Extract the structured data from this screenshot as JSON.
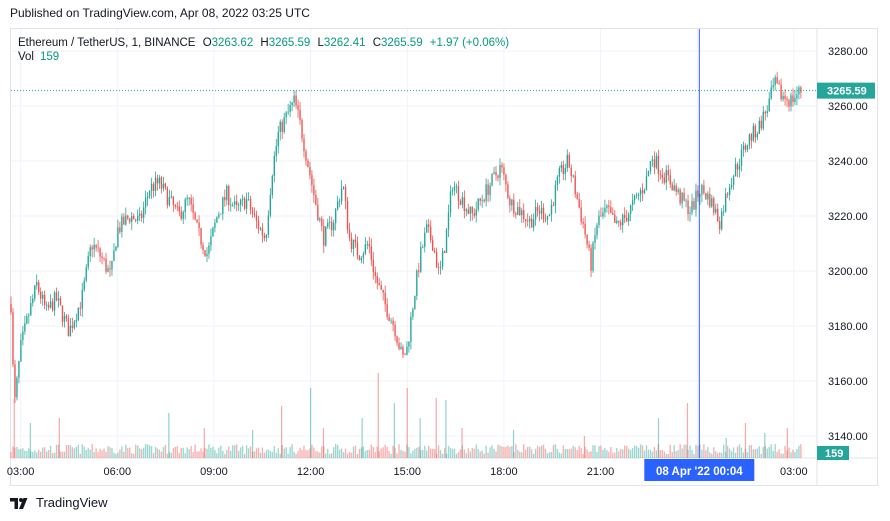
{
  "header": {
    "published": "Published on TradingView.com, Apr 08, 2022 03:25 UTC"
  },
  "legend": {
    "symbol": "Ethereum / TetherUS, 1, BINANCE",
    "open_label": "O",
    "open": "3263.62",
    "high_label": "H",
    "high": "3265.59",
    "low_label": "L",
    "low": "3262.41",
    "close_label": "C",
    "close": "3265.59",
    "change": "+1.97 (+0.06%)",
    "vol_label": "Vol",
    "vol": "159"
  },
  "badges": {
    "price": "3265.59",
    "volume": "159",
    "crosshair_time": "08 Apr '22   00:04"
  },
  "footer": {
    "brand": "TradingView"
  },
  "colors": {
    "up": "#26a69a",
    "down": "#ef5350",
    "crosshair": "#2962ff",
    "badge_price": "#26a69a"
  },
  "chart_data": {
    "type": "candlestick",
    "interval": "1 minute",
    "ylim": [
      3132,
      3288
    ],
    "y_ticks": [
      3140,
      3160,
      3180,
      3200,
      3220,
      3240,
      3260,
      3280
    ],
    "y_tick_labels": [
      "3140.00",
      "3160.00",
      "3180.00",
      "3200.00",
      "3220.00",
      "3240.00",
      "3260.00",
      "3280.00"
    ],
    "x_range_hours": [
      -21.3,
      3.72
    ],
    "x_ticks": [
      {
        "hours": -21,
        "label": "03:00"
      },
      {
        "hours": -18,
        "label": "06:00"
      },
      {
        "hours": -15,
        "label": "09:00"
      },
      {
        "hours": -12,
        "label": "12:00"
      },
      {
        "hours": -9,
        "label": "15:00"
      },
      {
        "hours": -6,
        "label": "18:00"
      },
      {
        "hours": -3,
        "label": "21:00"
      },
      {
        "hours": 0,
        "label": "00:00"
      },
      {
        "hours": 3,
        "label": "03:00"
      }
    ],
    "crosshair_hours": 0.067,
    "last_price": 3265.59,
    "price_path": [
      [
        -21.3,
        3188
      ],
      [
        -21.2,
        3150
      ],
      [
        -21.0,
        3172
      ],
      [
        -20.8,
        3182
      ],
      [
        -20.5,
        3195
      ],
      [
        -20.2,
        3185
      ],
      [
        -19.9,
        3190
      ],
      [
        -19.5,
        3178
      ],
      [
        -19.1,
        3190
      ],
      [
        -18.8,
        3210
      ],
      [
        -18.5,
        3205
      ],
      [
        -18.2,
        3198
      ],
      [
        -18.0,
        3215
      ],
      [
        -17.6,
        3220
      ],
      [
        -17.3,
        3218
      ],
      [
        -17.0,
        3230
      ],
      [
        -16.7,
        3232
      ],
      [
        -16.4,
        3226
      ],
      [
        -16.1,
        3220
      ],
      [
        -15.8,
        3226
      ],
      [
        -15.5,
        3214
      ],
      [
        -15.2,
        3206
      ],
      [
        -14.9,
        3220
      ],
      [
        -14.6,
        3228
      ],
      [
        -14.3,
        3222
      ],
      [
        -14.0,
        3226
      ],
      [
        -13.7,
        3218
      ],
      [
        -13.4,
        3212
      ],
      [
        -13.2,
        3236
      ],
      [
        -13.0,
        3250
      ],
      [
        -12.8,
        3255
      ],
      [
        -12.5,
        3262
      ],
      [
        -12.3,
        3252
      ],
      [
        -12.1,
        3240
      ],
      [
        -11.9,
        3228
      ],
      [
        -11.6,
        3212
      ],
      [
        -11.3,
        3218
      ],
      [
        -11.0,
        3232
      ],
      [
        -10.8,
        3212
      ],
      [
        -10.5,
        3206
      ],
      [
        -10.2,
        3210
      ],
      [
        -10.0,
        3198
      ],
      [
        -9.7,
        3188
      ],
      [
        -9.4,
        3180
      ],
      [
        -9.15,
        3168
      ],
      [
        -9.0,
        3172
      ],
      [
        -8.8,
        3190
      ],
      [
        -8.6,
        3205
      ],
      [
        -8.4,
        3215
      ],
      [
        -8.2,
        3210
      ],
      [
        -8.0,
        3198
      ],
      [
        -7.8,
        3212
      ],
      [
        -7.6,
        3232
      ],
      [
        -7.3,
        3226
      ],
      [
        -7.0,
        3220
      ],
      [
        -6.7,
        3226
      ],
      [
        -6.4,
        3232
      ],
      [
        -6.1,
        3238
      ],
      [
        -5.8,
        3225
      ],
      [
        -5.5,
        3222
      ],
      [
        -5.2,
        3218
      ],
      [
        -4.9,
        3222
      ],
      [
        -4.6,
        3220
      ],
      [
        -4.3,
        3234
      ],
      [
        -4.0,
        3240
      ],
      [
        -3.7,
        3225
      ],
      [
        -3.5,
        3215
      ],
      [
        -3.3,
        3202
      ],
      [
        -3.1,
        3218
      ],
      [
        -2.8,
        3222
      ],
      [
        -2.5,
        3216
      ],
      [
        -2.2,
        3220
      ],
      [
        -1.9,
        3226
      ],
      [
        -1.6,
        3232
      ],
      [
        -1.4,
        3242
      ],
      [
        -1.1,
        3236
      ],
      [
        -0.8,
        3232
      ],
      [
        -0.5,
        3226
      ],
      [
        -0.2,
        3222
      ],
      [
        0.1,
        3230
      ],
      [
        0.4,
        3226
      ],
      [
        0.7,
        3218
      ],
      [
        1.0,
        3232
      ],
      [
        1.3,
        3240
      ],
      [
        1.6,
        3248
      ],
      [
        1.9,
        3252
      ],
      [
        2.2,
        3260
      ],
      [
        2.4,
        3268
      ],
      [
        2.6,
        3264
      ],
      [
        2.9,
        3262
      ],
      [
        3.22,
        3265.59
      ]
    ],
    "volume_spikes": [
      [
        -21.2,
        60
      ],
      [
        -20.7,
        35
      ],
      [
        -19.8,
        40
      ],
      [
        -16.4,
        45
      ],
      [
        -15.3,
        30
      ],
      [
        -13.8,
        28
      ],
      [
        -12.9,
        52
      ],
      [
        -12.0,
        70
      ],
      [
        -11.6,
        30
      ],
      [
        -10.4,
        40
      ],
      [
        -9.9,
        85
      ],
      [
        -9.4,
        55
      ],
      [
        -9.0,
        70
      ],
      [
        -8.6,
        40
      ],
      [
        -8.1,
        60
      ],
      [
        -7.8,
        58
      ],
      [
        -7.3,
        30
      ],
      [
        -5.7,
        28
      ],
      [
        -3.5,
        22
      ],
      [
        -1.2,
        40
      ],
      [
        -0.3,
        55
      ],
      [
        0.9,
        20
      ],
      [
        1.5,
        35
      ],
      [
        2.1,
        25
      ],
      [
        2.8,
        30
      ]
    ]
  }
}
